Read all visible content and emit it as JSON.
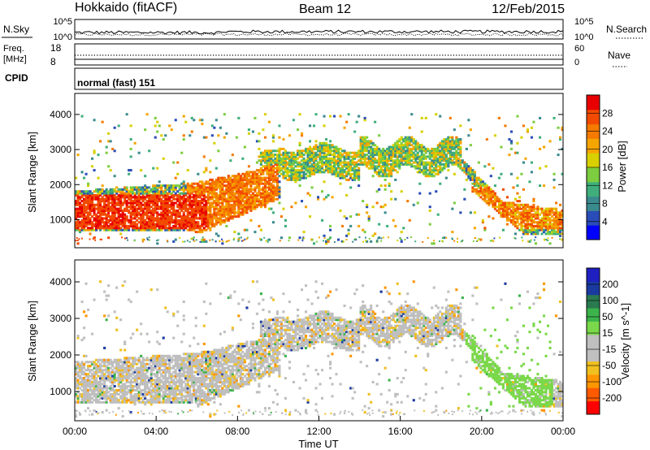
{
  "header": {
    "station": "Hokkaido (fitACF)",
    "beam": "Beam 12",
    "date": "12/Feb/2015"
  },
  "top_panels": {
    "nsky_label": "N.Sky",
    "nsky_ticks": [
      "10^5",
      "10^0"
    ],
    "nsearch_label": "N.Search",
    "nsearch_ticks_right": [
      "10^5",
      "10^0"
    ],
    "freq_label": "Freq.",
    "freq_unit": "[MHz]",
    "freq_ticks": [
      "18",
      "8"
    ],
    "nave_label": "Nave",
    "nave_ticks_right": [
      "60",
      "0"
    ],
    "cpid_label": "CPID",
    "cpid_value": "normal (fast) 151"
  },
  "colors": {
    "power": [
      "#0000ff",
      "#2a4cb8",
      "#3a8a8e",
      "#3fae7c",
      "#7ccd3f",
      "#d8d000",
      "#f5a500",
      "#f57a00",
      "#f24a00",
      "#e80000"
    ],
    "velocity": [
      "#ff0000",
      "#ff5a00",
      "#ff9600",
      "#f0c020",
      "#bfbfbf",
      "#bfbfbf",
      "#7ad84a",
      "#3cb44b",
      "#2a7a50",
      "#1a3aa0",
      "#2020c0"
    ]
  },
  "chart_data": [
    {
      "type": "heatmap",
      "name": "power",
      "ylabel": "Slant Range [km]",
      "y_ticks": [
        "4000",
        "3000",
        "2000",
        "1000"
      ],
      "ylim": [
        200,
        4600
      ],
      "xlim": [
        0,
        24
      ],
      "colorbar_label": "Power [dB]",
      "colorbar_ticks": [
        "28",
        "24",
        "20",
        "16",
        "12",
        "8",
        "4"
      ],
      "zlim": [
        0,
        32
      ],
      "regions": [
        {
          "x": [
            0,
            6.5
          ],
          "y": [
            700,
            1700
          ],
          "value": 28
        },
        {
          "x": [
            0.5,
            2.5
          ],
          "y": [
            300,
            500
          ],
          "value": 28
        },
        {
          "x": [
            5.5,
            9.5
          ],
          "y": [
            900,
            2000
          ],
          "value": 24
        },
        {
          "x": [
            9,
            13
          ],
          "y": [
            1700,
            2400
          ],
          "value": 20
        },
        {
          "x": [
            13,
            19
          ],
          "y": [
            2300,
            3300
          ],
          "value": 16
        },
        {
          "x": [
            20,
            24
          ],
          "y": [
            700,
            1800
          ],
          "value": 22
        }
      ]
    },
    {
      "type": "heatmap",
      "name": "velocity",
      "ylabel": "Slant Range [km]",
      "y_ticks": [
        "4000",
        "3000",
        "2000",
        "1000"
      ],
      "ylim": [
        200,
        4600
      ],
      "xlim": [
        0,
        24
      ],
      "xlabel": "Time UT",
      "x_ticks": [
        "00:00",
        "04:00",
        "08:00",
        "12:00",
        "16:00",
        "20:00",
        "00:00"
      ],
      "colorbar_label": "Velocity [m s^-1]",
      "colorbar_ticks": [
        "200",
        "100",
        "50",
        "15",
        "-15",
        "-50",
        "-100",
        "-200"
      ],
      "zlim": [
        -250,
        250
      ],
      "regions": [
        {
          "x": [
            0,
            10
          ],
          "y": [
            500,
            2300
          ],
          "value": 0
        },
        {
          "x": [
            10,
            19
          ],
          "y": [
            2300,
            3300
          ],
          "value": 0
        },
        {
          "x": [
            19,
            23
          ],
          "y": [
            500,
            3300
          ],
          "value": 60
        },
        {
          "x": [
            4,
            7
          ],
          "y": [
            1500,
            3000
          ],
          "value": -40
        }
      ]
    }
  ]
}
